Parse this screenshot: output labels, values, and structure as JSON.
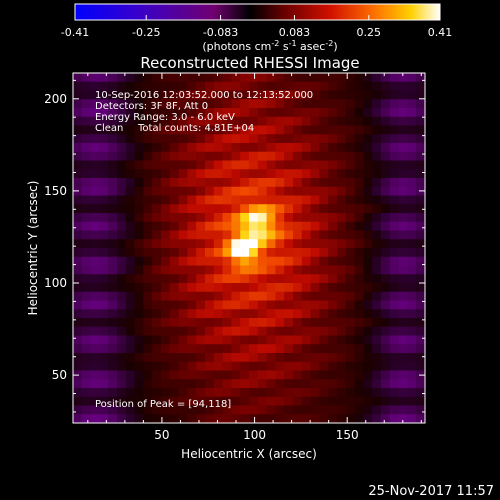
{
  "chart_data": {
    "type": "heatmap",
    "title": "Reconstructed RHESSI Image",
    "xlabel": "Heliocentric X (arcsec)",
    "ylabel": "Heliocentric Y (arcsec)",
    "xlim": [
      2,
      192
    ],
    "ylim": [
      24,
      214
    ],
    "x_ticks": [
      "50",
      "100",
      "150"
    ],
    "x_tick_values": [
      50,
      100,
      150
    ],
    "y_ticks": [
      "50",
      "100",
      "150",
      "200"
    ],
    "y_tick_values": [
      50,
      100,
      150,
      200
    ],
    "colorbar": {
      "range": [
        -0.41,
        0.41
      ],
      "tick_labels": [
        "-0.41",
        "-0.25",
        "-0.083",
        "0.083",
        "0.25",
        "0.41"
      ],
      "tick_values": [
        -0.41,
        -0.25,
        -0.083,
        0.083,
        0.25,
        0.41
      ],
      "unit_label": "(photons cm",
      "unit_exp1": "-2",
      "unit_mid": " s",
      "unit_exp2": "-1",
      "unit_mid2": " asec",
      "unit_exp3": "-2",
      "unit_end": ")",
      "colors": [
        "#0000ff",
        "#4000c0",
        "#7000a0",
        "#000000",
        "#5a0000",
        "#b00000",
        "#ff4000",
        "#ffa000",
        "#ffff00",
        "#ffffff"
      ]
    },
    "peak": {
      "x": 94,
      "y": 118,
      "value": 0.41
    },
    "secondary_peak": {
      "x": 102,
      "y": 132
    },
    "negative_regions": [
      {
        "x": 15,
        "y": 120,
        "value": -0.2
      },
      {
        "x": 180,
        "y": 120,
        "value": -0.2
      }
    ]
  },
  "annotations": {
    "time_range": "10-Sep-2016 12:03:52.000 to 12:13:52.000",
    "detectors": "Detectors: 3F 8F, Att 0",
    "energy": "Energy Range: 3.0 - 6.0 keV",
    "method": "Clean",
    "counts": "Total counts: 4.81E+04",
    "peak_position": "Position of Peak = [94,118]"
  },
  "footer": {
    "timestamp": "25-Nov-2017 11:57"
  }
}
